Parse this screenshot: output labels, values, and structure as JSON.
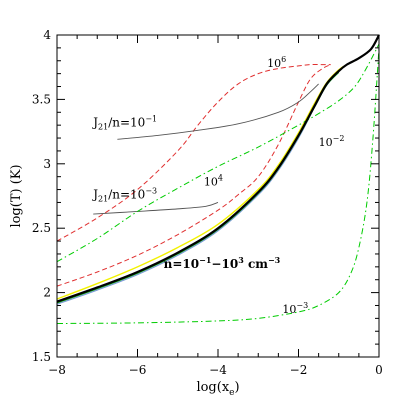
{
  "chart_data": {
    "type": "line",
    "xlabel": "log(x",
    "xlabel_sub": "e",
    "xlabel_close": ")",
    "ylabel": "log(T)  (K)",
    "xlim": [
      -8,
      0
    ],
    "ylim": [
      1.5,
      4
    ],
    "xticks": [
      -8,
      -6,
      -4,
      -2,
      0
    ],
    "xtick_labels": [
      "−8",
      "−6",
      "−4",
      "−2",
      "0"
    ],
    "yticks": [
      1.5,
      2,
      2.5,
      3,
      3.5,
      4
    ],
    "ytick_labels": [
      "1.5",
      "2",
      "2.5",
      "3",
      "3.5",
      "4"
    ],
    "grid": false,
    "annotations": {
      "j21_high": {
        "main": "J",
        "sub": "21",
        "rest": "/n=10",
        "sup": "−1"
      },
      "j21_low": {
        "main": "J",
        "sub": "21",
        "rest": "/n=10",
        "sup": "−3"
      },
      "density": {
        "main": "n=10",
        "sup1": "−1",
        "mid": "−10",
        "sup2": "3",
        "rest": " cm",
        "sup3": "−3"
      },
      "red_high": {
        "main": "10",
        "sup": "6"
      },
      "red_low": {
        "main": "10",
        "sup": "4"
      },
      "green_high": {
        "main": "10",
        "sup": "−2"
      },
      "green_low": {
        "main": "10",
        "sup": "−3"
      }
    },
    "series": [
      {
        "color": "#000000",
        "style": "solid",
        "width": 2.2,
        "x": [
          -8,
          -7,
          -6,
          -5,
          -4,
          -3,
          -2.5,
          -2,
          -1.6,
          -1.3,
          -1.0,
          -0.8,
          -0.5,
          -0.2,
          0
        ],
        "y": [
          1.93,
          2.04,
          2.16,
          2.31,
          2.5,
          2.78,
          2.97,
          3.22,
          3.45,
          3.62,
          3.72,
          3.77,
          3.82,
          3.89,
          4.0
        ]
      },
      {
        "color": "#f2f200",
        "style": "solid",
        "width": 1.4,
        "x": [
          -8,
          -7,
          -6,
          -5,
          -4,
          -3,
          -2.5,
          -2,
          -1.6,
          -1.3,
          -1.0,
          -0.8,
          -0.5,
          -0.2,
          0
        ],
        "y": [
          1.95,
          2.07,
          2.2,
          2.35,
          2.53,
          2.8,
          2.99,
          3.24,
          3.47,
          3.63,
          3.73,
          3.77,
          3.82,
          3.89,
          4.0
        ]
      },
      {
        "color": "#7a9ad6",
        "style": "solid",
        "width": 1.2,
        "x": [
          -8,
          -7,
          -6,
          -5,
          -4,
          -3,
          -2.5,
          -2,
          -1.6,
          -1.3,
          -1.0
        ],
        "y": [
          1.91,
          2.02,
          2.14,
          2.29,
          2.48,
          2.76,
          2.95,
          3.2,
          3.44,
          3.61,
          3.71
        ]
      },
      {
        "color": "#00a000",
        "style": "solid",
        "width": 1.0,
        "x": [
          -8,
          -7,
          -6,
          -5,
          -4,
          -3,
          -2.5,
          -2,
          -1.6,
          -1.3,
          -1.0
        ],
        "y": [
          1.92,
          2.03,
          2.15,
          2.3,
          2.49,
          2.77,
          2.96,
          3.21,
          3.44,
          3.61,
          3.71
        ]
      },
      {
        "color": "#e03030",
        "style": "dashed",
        "width": 1.0,
        "x": [
          -8,
          -7,
          -6,
          -5,
          -4,
          -3.5,
          -3,
          -2.5,
          -2,
          -1.7,
          -1.4,
          -1.2
        ],
        "y": [
          2.05,
          2.16,
          2.29,
          2.45,
          2.64,
          2.76,
          2.9,
          3.15,
          3.48,
          3.66,
          3.74,
          3.77
        ]
      },
      {
        "color": "#e03030",
        "style": "dashed",
        "width": 1.0,
        "x": [
          -8,
          -7,
          -6,
          -5,
          -4.5,
          -4,
          -3.5,
          -3,
          -2.5,
          -2,
          -1.7,
          -1.4,
          -1.2
        ],
        "y": [
          2.4,
          2.58,
          2.8,
          3.1,
          3.3,
          3.48,
          3.62,
          3.7,
          3.74,
          3.76,
          3.77,
          3.77,
          3.77
        ]
      },
      {
        "color": "#555555",
        "style": "solid",
        "width": 0.9,
        "x": [
          -6.5,
          -5.5,
          -4.5,
          -3.5,
          -2.5,
          -2.0,
          -1.7,
          -1.5
        ],
        "y": [
          3.19,
          3.22,
          3.26,
          3.31,
          3.4,
          3.48,
          3.56,
          3.62
        ]
      },
      {
        "color": "#555555",
        "style": "solid",
        "width": 0.9,
        "x": [
          -7.1,
          -6,
          -5,
          -4.3,
          -4.0
        ],
        "y": [
          2.61,
          2.63,
          2.65,
          2.67,
          2.7
        ]
      },
      {
        "color": "#00cc00",
        "style": "dashdot",
        "width": 1.0,
        "x": [
          -8,
          -7,
          -6,
          -5,
          -4,
          -3,
          -2,
          -1.5,
          -1.0,
          -0.6,
          -0.3,
          0
        ],
        "y": [
          2.24,
          2.42,
          2.63,
          2.81,
          2.98,
          3.13,
          3.3,
          3.39,
          3.49,
          3.6,
          3.75,
          3.93
        ]
      },
      {
        "color": "#00cc00",
        "style": "dashdot",
        "width": 1.0,
        "x": [
          -8,
          -6,
          -4,
          -3,
          -2,
          -1.5,
          -1.0,
          -0.7,
          -0.5,
          -0.3,
          -0.15,
          0
        ],
        "y": [
          1.76,
          1.765,
          1.78,
          1.8,
          1.85,
          1.9,
          2.0,
          2.15,
          2.35,
          2.7,
          3.2,
          3.9
        ]
      }
    ]
  }
}
